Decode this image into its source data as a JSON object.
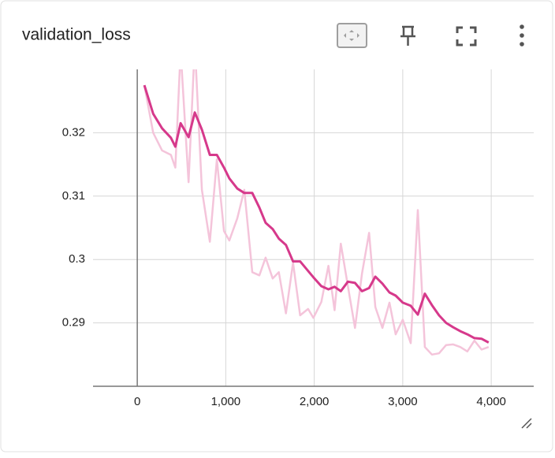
{
  "chart_data": {
    "type": "line",
    "title": "validation_loss",
    "x": [
      80,
      180,
      280,
      380,
      430,
      490,
      580,
      650,
      730,
      820,
      900,
      980,
      1040,
      1130,
      1210,
      1300,
      1380,
      1450,
      1530,
      1600,
      1680,
      1760,
      1840,
      1930,
      1990,
      2080,
      2160,
      2230,
      2300,
      2380,
      2460,
      2540,
      2620,
      2690,
      2770,
      2850,
      2920,
      3000,
      3090,
      3170,
      3250,
      3330,
      3410,
      3490,
      3570,
      3650,
      3730,
      3810,
      3890,
      3970
    ],
    "series": [
      {
        "color": "#f4c4da",
        "values": [
          0.3275,
          0.32,
          0.3172,
          0.3165,
          0.3145,
          0.333,
          0.3122,
          0.334,
          0.311,
          0.3028,
          0.3158,
          0.3045,
          0.303,
          0.3065,
          0.311,
          0.298,
          0.2975,
          0.3003,
          0.297,
          0.298,
          0.2915,
          0.2995,
          0.2912,
          0.2922,
          0.2908,
          0.2933,
          0.299,
          0.292,
          0.3025,
          0.2958,
          0.2892,
          0.2978,
          0.3042,
          0.2925,
          0.2892,
          0.2932,
          0.2882,
          0.2905,
          0.2868,
          0.3078,
          0.2862,
          0.285,
          0.2852,
          0.2865,
          0.2866,
          0.2862,
          0.2855,
          0.2872,
          0.2858,
          0.2862
        ]
      },
      {
        "color": "#d6398b",
        "values": [
          0.3275,
          0.323,
          0.3207,
          0.3192,
          0.3178,
          0.3215,
          0.3193,
          0.3232,
          0.3205,
          0.3165,
          0.3165,
          0.3145,
          0.3128,
          0.3112,
          0.3105,
          0.3105,
          0.3082,
          0.3058,
          0.3048,
          0.3033,
          0.3023,
          0.2997,
          0.2997,
          0.2982,
          0.2972,
          0.2958,
          0.2953,
          0.2957,
          0.295,
          0.2965,
          0.2963,
          0.295,
          0.2955,
          0.2973,
          0.2962,
          0.2948,
          0.2943,
          0.2932,
          0.2927,
          0.2913,
          0.2946,
          0.2928,
          0.2912,
          0.29,
          0.2893,
          0.2887,
          0.2882,
          0.2876,
          0.2875,
          0.2869
        ]
      }
    ],
    "xlim": [
      -500,
      4480
    ],
    "xticks": [
      0,
      {
        "value": 1000,
        "label": "1,000"
      },
      {
        "value": 2000,
        "label": "2,000"
      },
      {
        "value": 3000,
        "label": "3,000"
      },
      {
        "value": 4000,
        "label": "4,000"
      }
    ],
    "ylim": [
      0.28,
      0.33
    ],
    "yticks": [
      0.29,
      0.3,
      0.31,
      0.32
    ],
    "grid": true
  }
}
